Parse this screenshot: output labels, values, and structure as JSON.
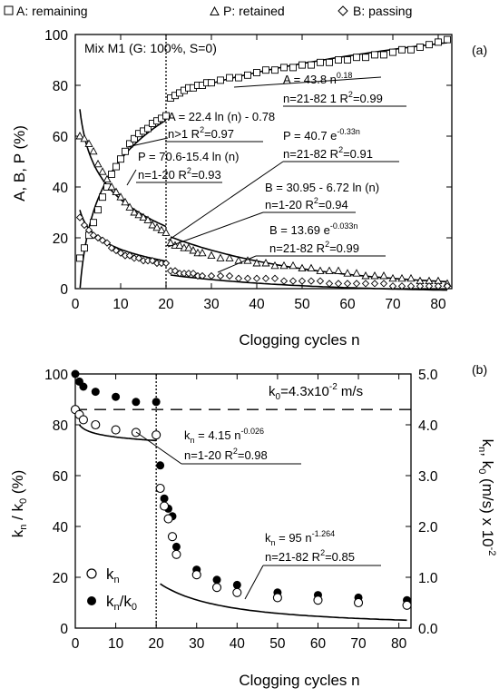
{
  "chart_data": [
    {
      "type": "scatter",
      "panel_label": "(a)",
      "mix_label": "Mix M1 (G: 100%, S=0)",
      "xlabel": "Clogging cycles n",
      "ylabel": "A, B, P (%)",
      "xlim": [
        0,
        83
      ],
      "ylim": [
        0,
        100
      ],
      "xticks": [
        "0",
        "10",
        "20",
        "30",
        "40",
        "50",
        "60",
        "70",
        "80"
      ],
      "yticks": [
        "0",
        "20",
        "40",
        "60",
        "80",
        "100"
      ],
      "grid": false,
      "legend_position": "top",
      "series": [
        {
          "name": "A: remaining",
          "marker": "square",
          "x": [
            1,
            2,
            3,
            4,
            5,
            6,
            7,
            8,
            9,
            10,
            11,
            12,
            13,
            14,
            15,
            16,
            17,
            18,
            19,
            20,
            21,
            22,
            23,
            24,
            25,
            26,
            27,
            28,
            29,
            30,
            32,
            34,
            36,
            38,
            40,
            42,
            44,
            46,
            48,
            50,
            52,
            54,
            56,
            58,
            60,
            62,
            64,
            66,
            68,
            70,
            72,
            74,
            76,
            78,
            80,
            82
          ],
          "y": [
            12,
            16,
            21,
            26,
            31,
            36,
            40,
            45,
            48,
            51,
            54,
            57,
            59,
            61,
            62,
            63,
            65,
            66,
            67,
            68,
            75,
            76,
            77,
            78,
            79,
            79,
            80,
            80,
            81,
            81,
            82,
            83,
            83,
            84,
            85,
            86,
            86,
            87,
            87,
            88,
            88,
            89,
            89,
            90,
            90,
            91,
            91,
            92,
            92,
            93,
            94,
            94,
            95,
            96,
            97,
            98
          ]
        },
        {
          "name": "P: retained",
          "marker": "triangle",
          "x": [
            1,
            2,
            3,
            4,
            5,
            6,
            7,
            8,
            9,
            10,
            11,
            12,
            13,
            14,
            15,
            16,
            17,
            18,
            19,
            20,
            21,
            22,
            23,
            24,
            25,
            26,
            27,
            28,
            30,
            32,
            34,
            36,
            38,
            40,
            42,
            44,
            46,
            48,
            50,
            52,
            54,
            56,
            58,
            60,
            62,
            64,
            66,
            68,
            70,
            72,
            74,
            76,
            78,
            80,
            82
          ],
          "y": [
            60,
            59,
            57,
            54,
            49,
            46,
            43,
            40,
            38,
            36,
            34,
            32,
            30,
            29,
            28,
            27,
            25,
            24,
            23,
            22,
            18,
            17,
            17,
            16,
            16,
            15,
            14,
            14,
            13,
            12,
            12,
            11,
            11,
            10,
            10,
            9,
            9,
            9,
            8,
            8,
            7,
            7,
            7,
            6,
            6,
            5,
            5,
            5,
            4,
            4,
            4,
            3,
            3,
            3,
            2
          ]
        },
        {
          "name": "B: passing",
          "marker": "diamond",
          "x": [
            1,
            2,
            3,
            4,
            5,
            6,
            7,
            8,
            9,
            10,
            11,
            12,
            13,
            14,
            15,
            16,
            17,
            18,
            19,
            20,
            21,
            22,
            23,
            24,
            25,
            26,
            27,
            28,
            30,
            32,
            34,
            36,
            38,
            40,
            42,
            44,
            46,
            48,
            50,
            52,
            54,
            56,
            58,
            60,
            62,
            64,
            66,
            68,
            70,
            72,
            74,
            76,
            78,
            80,
            82
          ],
          "y": [
            28,
            25,
            23,
            21,
            20,
            19,
            18,
            16,
            15,
            14,
            13,
            13,
            12,
            12,
            11,
            11,
            11,
            10,
            10,
            10,
            7,
            7,
            6,
            6,
            6,
            6,
            5,
            5,
            5,
            5,
            5,
            4,
            4,
            4,
            4,
            4,
            3,
            3,
            3,
            3,
            3,
            2,
            2,
            2,
            2,
            2,
            2,
            2,
            1,
            1,
            1,
            1,
            1,
            1,
            1
          ]
        }
      ],
      "fit_annotations": [
        {
          "text": "A = 43.8 n",
          "sup": "0.18",
          "line2": "n=21-82 1  R",
          "line2_sup": "2",
          "line2_end": "=0.99"
        },
        {
          "text": "A = 22.4 ln (n) - 0.78",
          "line2": "n>1  R",
          "line2_sup": "2",
          "line2_end": "=0.97"
        },
        {
          "text": "P = 40.7 e",
          "sup": "-0.33n",
          "line2": "n=21-82 R",
          "line2_sup": "2",
          "line2_end": "=0.91"
        },
        {
          "text": "P = 70.6-15.4 ln (n)",
          "line2": "n=1-20 R",
          "line2_sup": "2",
          "line2_end": "=0.93"
        },
        {
          "text": "B = 30.95 - 6.72 ln (n)",
          "line2": "n=1-20 R",
          "line2_sup": "2",
          "line2_end": "=0.94"
        },
        {
          "text": "B = 13.69 e",
          "sup": "-0.033n",
          "line2": "n=21-82 R",
          "line2_sup": "2",
          "line2_end": "=0.99"
        }
      ]
    },
    {
      "type": "scatter",
      "panel_label": "(b)",
      "xlabel": "Clogging cycles n",
      "ylabel_left": "k",
      "ylabel_right": "k",
      "xlim": [
        0,
        83
      ],
      "ylim_left": [
        0,
        100
      ],
      "ylim_right": [
        0,
        5.0
      ],
      "xticks": [
        "0",
        "10",
        "20",
        "30",
        "40",
        "50",
        "60",
        "70",
        "80"
      ],
      "yticks_left": [
        "0",
        "20",
        "40",
        "60",
        "80",
        "100"
      ],
      "yticks_right": [
        "0.0",
        "1.0",
        "2.0",
        "3.0",
        "4.0",
        "5.0"
      ],
      "grid": false,
      "legend_position": "bottom-left",
      "k0_label_prefix": "k",
      "k0_label_sub": "0",
      "k0_label_mid": "=4.3x10",
      "k0_label_sup": "-2",
      "k0_label_end": " m/s",
      "k0_value": 4.3,
      "series": [
        {
          "name": "k",
          "marker": "open-circle",
          "axis": "right",
          "x": [
            0,
            1,
            2,
            5,
            10,
            15,
            20,
            21,
            22,
            23,
            24,
            25,
            30,
            35,
            40,
            50,
            60,
            70,
            82
          ],
          "y": [
            4.3,
            4.2,
            4.1,
            4.0,
            3.9,
            3.85,
            3.8,
            2.75,
            2.4,
            2.15,
            1.8,
            1.45,
            1.05,
            0.8,
            0.7,
            0.6,
            0.55,
            0.5,
            0.45
          ]
        },
        {
          "name": "k",
          "marker": "filled-circle",
          "axis": "left",
          "x": [
            0,
            1,
            2,
            5,
            10,
            15,
            20,
            21,
            22,
            23,
            24,
            25,
            30,
            35,
            40,
            50,
            60,
            70,
            82
          ],
          "y": [
            100,
            97,
            95,
            93,
            91,
            89,
            89,
            64,
            51,
            47,
            44,
            32,
            23,
            19,
            17,
            14,
            13,
            12,
            11
          ]
        }
      ],
      "fit_annotations": [
        {
          "text": "k",
          "sub": "n",
          "mid": " = 4.15 n",
          "sup": "-0.026",
          "line2": "n=1-20  R",
          "line2_sup": "2",
          "line2_end": "=0.98"
        },
        {
          "text": "k",
          "sub": "n",
          "mid": " = 95 n",
          "sup": "-1.264",
          "line2": "n=21-82  R",
          "line2_sup": "2",
          "line2_end": "=0.85"
        }
      ],
      "legend": [
        {
          "label": "k",
          "sub": "n"
        },
        {
          "label": "k",
          "sub": "n",
          "end": "/k",
          "sub2": "0"
        }
      ]
    }
  ]
}
